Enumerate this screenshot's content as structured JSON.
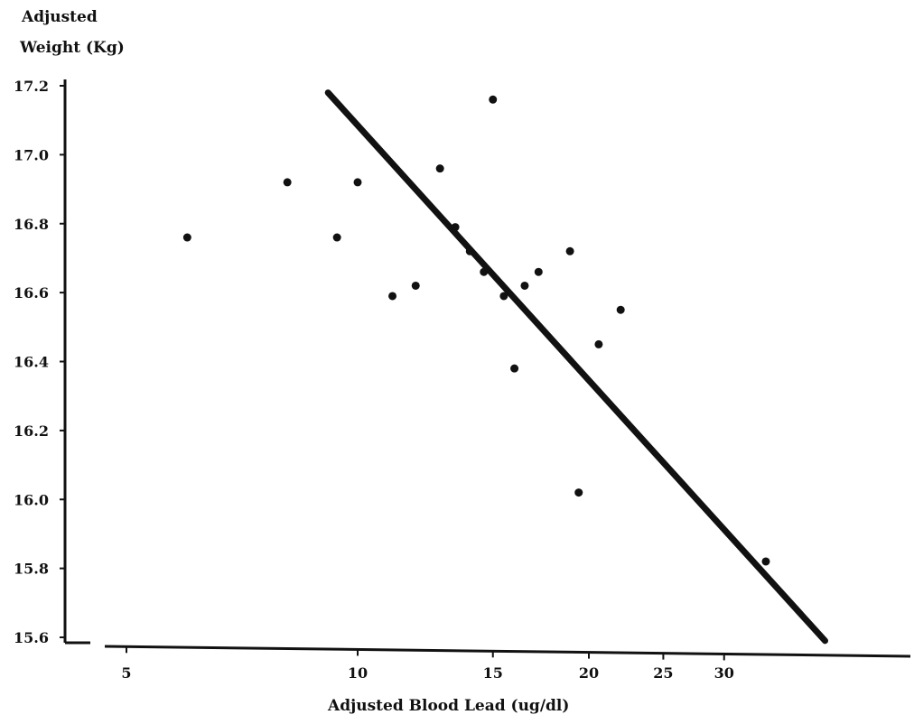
{
  "chart_data": {
    "type": "scatter",
    "title": "",
    "ylabel_lines": [
      "Adjusted",
      "Weight (Kg)"
    ],
    "xlabel": "Adjusted Blood Lead (ug/dl)",
    "x_scale": "log",
    "xlim": [
      4.2,
      50
    ],
    "ylim": [
      15.6,
      17.2
    ],
    "x_ticks": [
      5,
      10,
      15,
      20,
      25,
      30
    ],
    "x_tick_labels": [
      "5",
      "10",
      "15",
      "20",
      "25",
      "30"
    ],
    "y_ticks": [
      15.6,
      15.8,
      16.0,
      16.2,
      16.4,
      16.6,
      16.8,
      17.0,
      17.2
    ],
    "y_tick_labels": [
      "15.6",
      "15.8",
      "16.0",
      "16.2",
      "16.4",
      "16.6",
      "16.8",
      "17.0",
      "17.2"
    ],
    "grid": false,
    "legend": "none",
    "colors": {
      "points": "#111111",
      "line": "#111111",
      "axes": "#111111"
    },
    "points": [
      {
        "x": 6.0,
        "y": 16.76
      },
      {
        "x": 8.1,
        "y": 16.92
      },
      {
        "x": 9.4,
        "y": 16.76
      },
      {
        "x": 10.0,
        "y": 16.92
      },
      {
        "x": 11.1,
        "y": 16.59
      },
      {
        "x": 11.9,
        "y": 16.62
      },
      {
        "x": 12.8,
        "y": 16.96
      },
      {
        "x": 13.4,
        "y": 16.79
      },
      {
        "x": 14.0,
        "y": 16.72
      },
      {
        "x": 14.6,
        "y": 16.66
      },
      {
        "x": 15.0,
        "y": 17.16
      },
      {
        "x": 15.5,
        "y": 16.59
      },
      {
        "x": 16.0,
        "y": 16.38
      },
      {
        "x": 16.5,
        "y": 16.62
      },
      {
        "x": 17.2,
        "y": 16.66
      },
      {
        "x": 18.9,
        "y": 16.72
      },
      {
        "x": 19.4,
        "y": 16.02
      },
      {
        "x": 20.6,
        "y": 16.45
      },
      {
        "x": 22.0,
        "y": 16.55
      },
      {
        "x": 34.0,
        "y": 15.82
      }
    ],
    "fit_line": {
      "x": [
        9.15,
        40.6
      ],
      "y": [
        17.18,
        15.59
      ]
    }
  }
}
